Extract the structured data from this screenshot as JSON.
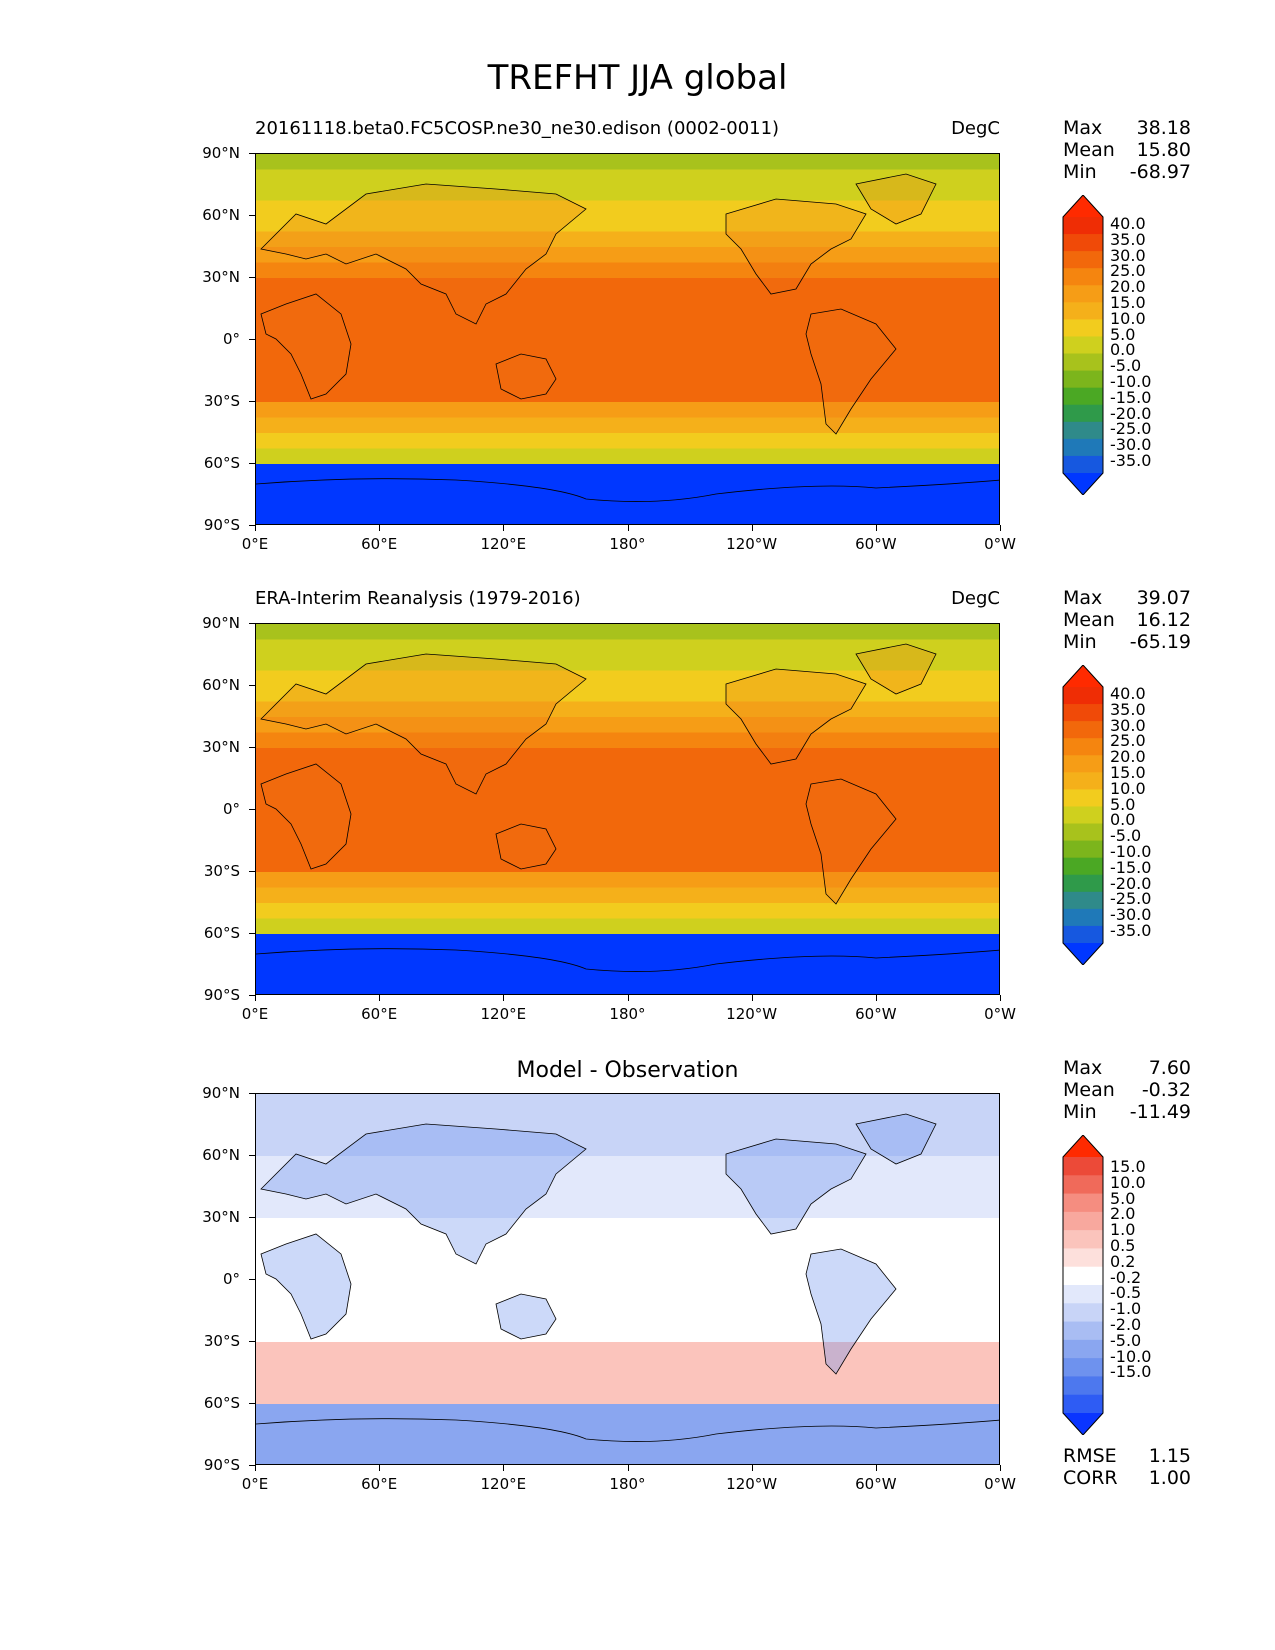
{
  "title": "TREFHT JJA global",
  "lat_labels": [
    "90°N",
    "60°N",
    "30°N",
    "0°",
    "30°S",
    "60°S",
    "90°S"
  ],
  "lon_labels": [
    "0°E",
    "60°E",
    "120°E",
    "180°",
    "120°W",
    "60°W",
    "0°W"
  ],
  "panels": [
    {
      "title": "20161118.beta0.FC5COSP.ne30_ne30.edison (0002-0011)",
      "units": "DegC",
      "stats": {
        "max_label": "Max",
        "max": "38.18",
        "mean_label": "Mean",
        "mean": "15.80",
        "min_label": "Min",
        "min": "-68.97"
      },
      "colorbar_levels": [
        "40.0",
        "35.0",
        "30.0",
        "25.0",
        "20.0",
        "15.0",
        "10.0",
        "5.0",
        "0.0",
        "-5.0",
        "-10.0",
        "-15.0",
        "-20.0",
        "-25.0",
        "-30.0",
        "-35.0"
      ]
    },
    {
      "title": "ERA-Interim Reanalysis (1979-2016)",
      "units": "DegC",
      "stats": {
        "max_label": "Max",
        "max": "39.07",
        "mean_label": "Mean",
        "mean": "16.12",
        "min_label": "Min",
        "min": "-65.19"
      },
      "colorbar_levels": [
        "40.0",
        "35.0",
        "30.0",
        "25.0",
        "20.0",
        "15.0",
        "10.0",
        "5.0",
        "0.0",
        "-5.0",
        "-10.0",
        "-15.0",
        "-20.0",
        "-25.0",
        "-30.0",
        "-35.0"
      ]
    },
    {
      "title": "Model - Observation",
      "units": "",
      "stats": {
        "max_label": "Max",
        "max": "7.60",
        "mean_label": "Mean",
        "mean": "-0.32",
        "min_label": "Min",
        "min": "-11.49"
      },
      "colorbar_levels": [
        "15.0",
        "10.0",
        "5.0",
        "2.0",
        "1.0",
        "0.5",
        "0.2",
        "-0.2",
        "-0.5",
        "-1.0",
        "-2.0",
        "-5.0",
        "-10.0",
        "-15.0"
      ],
      "extra_stats": {
        "rmse_label": "RMSE",
        "rmse": "1.15",
        "corr_label": "CORR",
        "corr": "1.00"
      }
    }
  ],
  "colors": {
    "temp_scale": [
      "#0037ff",
      "#1658e0",
      "#1f79b8",
      "#2f8a8a",
      "#2f9a4a",
      "#4ba824",
      "#7cb51c",
      "#a8c21c",
      "#cfd01e",
      "#f2cc1e",
      "#f5b01a",
      "#f69d16",
      "#f5850f",
      "#f2680b",
      "#f04a08",
      "#ef2d05",
      "#ff2a00"
    ],
    "diff_scale": [
      "#0a35ff",
      "#2e5cf4",
      "#4d78ee",
      "#6e92ee",
      "#8aa6f0",
      "#a9bdf3",
      "#c8d4f7",
      "#e2e8fb",
      "#ffffff",
      "#fde0dc",
      "#fbc4bc",
      "#f8a89e",
      "#f58d80",
      "#f06a5a",
      "#ec4a38",
      "#ff2a00"
    ]
  }
}
